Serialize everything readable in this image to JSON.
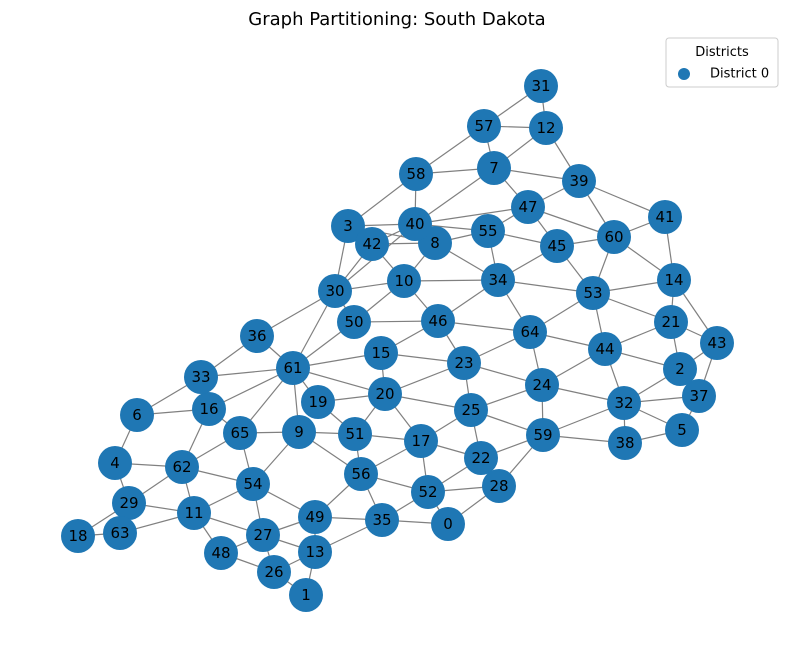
{
  "title": "Graph Partitioning: South Dakota",
  "legend": {
    "title": "Districts",
    "entries": [
      {
        "label": "District 0",
        "color": "#1f77b4"
      }
    ]
  },
  "node_color": "#1f77b4",
  "edge_color": "#808080",
  "nodes": [
    "0",
    "1",
    "2",
    "3",
    "4",
    "5",
    "6",
    "7",
    "8",
    "9",
    "10",
    "11",
    "12",
    "13",
    "14",
    "15",
    "16",
    "17",
    "18",
    "19",
    "20",
    "21",
    "22",
    "23",
    "24",
    "25",
    "26",
    "27",
    "28",
    "29",
    "30",
    "31",
    "32",
    "33",
    "34",
    "35",
    "36",
    "37",
    "38",
    "39",
    "40",
    "41",
    "42",
    "43",
    "44",
    "45",
    "46",
    "47",
    "48",
    "49",
    "50",
    "51",
    "52",
    "53",
    "54",
    "55",
    "56",
    "57",
    "58",
    "59",
    "60",
    "61",
    "62",
    "63",
    "64",
    "65"
  ],
  "edges": [
    [
      "31",
      "57"
    ],
    [
      "31",
      "12"
    ],
    [
      "57",
      "12"
    ],
    [
      "57",
      "7"
    ],
    [
      "57",
      "58"
    ],
    [
      "12",
      "7"
    ],
    [
      "12",
      "39"
    ],
    [
      "7",
      "58"
    ],
    [
      "7",
      "39"
    ],
    [
      "7",
      "47"
    ],
    [
      "7",
      "40"
    ],
    [
      "58",
      "40"
    ],
    [
      "58",
      "3"
    ],
    [
      "39",
      "47"
    ],
    [
      "39",
      "60"
    ],
    [
      "39",
      "41"
    ],
    [
      "47",
      "40"
    ],
    [
      "47",
      "55"
    ],
    [
      "47",
      "45"
    ],
    [
      "47",
      "60"
    ],
    [
      "40",
      "3"
    ],
    [
      "40",
      "42"
    ],
    [
      "40",
      "8"
    ],
    [
      "40",
      "55"
    ],
    [
      "40",
      "30"
    ],
    [
      "3",
      "42"
    ],
    [
      "3",
      "30"
    ],
    [
      "3",
      "8"
    ],
    [
      "42",
      "8"
    ],
    [
      "42",
      "10"
    ],
    [
      "42",
      "30"
    ],
    [
      "8",
      "55"
    ],
    [
      "8",
      "34"
    ],
    [
      "8",
      "10"
    ],
    [
      "55",
      "45"
    ],
    [
      "55",
      "34"
    ],
    [
      "45",
      "60"
    ],
    [
      "45",
      "34"
    ],
    [
      "45",
      "53"
    ],
    [
      "60",
      "41"
    ],
    [
      "60",
      "53"
    ],
    [
      "60",
      "14"
    ],
    [
      "41",
      "14"
    ],
    [
      "14",
      "53"
    ],
    [
      "14",
      "21"
    ],
    [
      "14",
      "43"
    ],
    [
      "10",
      "30"
    ],
    [
      "10",
      "34"
    ],
    [
      "10",
      "50"
    ],
    [
      "10",
      "46"
    ],
    [
      "30",
      "36"
    ],
    [
      "30",
      "61"
    ],
    [
      "30",
      "50"
    ],
    [
      "34",
      "53"
    ],
    [
      "34",
      "46"
    ],
    [
      "34",
      "64"
    ],
    [
      "53",
      "64"
    ],
    [
      "53",
      "44"
    ],
    [
      "53",
      "21"
    ],
    [
      "21",
      "44"
    ],
    [
      "21",
      "2"
    ],
    [
      "21",
      "43"
    ],
    [
      "43",
      "2"
    ],
    [
      "43",
      "37"
    ],
    [
      "50",
      "46"
    ],
    [
      "50",
      "61"
    ],
    [
      "46",
      "15"
    ],
    [
      "46",
      "23"
    ],
    [
      "46",
      "64"
    ],
    [
      "64",
      "23"
    ],
    [
      "64",
      "24"
    ],
    [
      "64",
      "44"
    ],
    [
      "44",
      "2"
    ],
    [
      "44",
      "24"
    ],
    [
      "44",
      "32"
    ],
    [
      "2",
      "32"
    ],
    [
      "2",
      "37"
    ],
    [
      "37",
      "32"
    ],
    [
      "37",
      "5"
    ],
    [
      "36",
      "61"
    ],
    [
      "36",
      "33"
    ],
    [
      "33",
      "61"
    ],
    [
      "33",
      "6"
    ],
    [
      "33",
      "16"
    ],
    [
      "61",
      "15"
    ],
    [
      "61",
      "20"
    ],
    [
      "61",
      "16"
    ],
    [
      "61",
      "65"
    ],
    [
      "61",
      "9"
    ],
    [
      "61",
      "19"
    ],
    [
      "15",
      "23"
    ],
    [
      "15",
      "20"
    ],
    [
      "23",
      "24"
    ],
    [
      "23",
      "25"
    ],
    [
      "23",
      "20"
    ],
    [
      "24",
      "25"
    ],
    [
      "24",
      "59"
    ],
    [
      "24",
      "32"
    ],
    [
      "32",
      "5"
    ],
    [
      "32",
      "38"
    ],
    [
      "32",
      "59"
    ],
    [
      "5",
      "38"
    ],
    [
      "6",
      "16"
    ],
    [
      "6",
      "4"
    ],
    [
      "16",
      "65"
    ],
    [
      "16",
      "62"
    ],
    [
      "19",
      "20"
    ],
    [
      "19",
      "51"
    ],
    [
      "20",
      "51"
    ],
    [
      "20",
      "17"
    ],
    [
      "20",
      "25"
    ],
    [
      "65",
      "9"
    ],
    [
      "65",
      "62"
    ],
    [
      "65",
      "54"
    ],
    [
      "9",
      "51"
    ],
    [
      "9",
      "56"
    ],
    [
      "9",
      "54"
    ],
    [
      "51",
      "56"
    ],
    [
      "51",
      "17"
    ],
    [
      "25",
      "17"
    ],
    [
      "25",
      "59"
    ],
    [
      "25",
      "22"
    ],
    [
      "17",
      "22"
    ],
    [
      "17",
      "56"
    ],
    [
      "17",
      "52"
    ],
    [
      "22",
      "59"
    ],
    [
      "22",
      "52"
    ],
    [
      "22",
      "28"
    ],
    [
      "59",
      "38"
    ],
    [
      "59",
      "28"
    ],
    [
      "4",
      "62"
    ],
    [
      "4",
      "29"
    ],
    [
      "62",
      "29"
    ],
    [
      "62",
      "11"
    ],
    [
      "62",
      "54"
    ],
    [
      "54",
      "11"
    ],
    [
      "54",
      "27"
    ],
    [
      "54",
      "49"
    ],
    [
      "56",
      "49"
    ],
    [
      "56",
      "52"
    ],
    [
      "56",
      "35"
    ],
    [
      "52",
      "35"
    ],
    [
      "52",
      "28"
    ],
    [
      "52",
      "0"
    ],
    [
      "28",
      "0"
    ],
    [
      "35",
      "0"
    ],
    [
      "29",
      "18"
    ],
    [
      "29",
      "63"
    ],
    [
      "29",
      "11"
    ],
    [
      "63",
      "18"
    ],
    [
      "63",
      "11"
    ],
    [
      "11",
      "48"
    ],
    [
      "11",
      "27"
    ],
    [
      "49",
      "27"
    ],
    [
      "49",
      "13"
    ],
    [
      "49",
      "35"
    ],
    [
      "27",
      "48"
    ],
    [
      "27",
      "26"
    ],
    [
      "27",
      "13"
    ],
    [
      "48",
      "26"
    ],
    [
      "26",
      "13"
    ],
    [
      "26",
      "1"
    ],
    [
      "13",
      "1"
    ],
    [
      "13",
      "35"
    ]
  ]
}
